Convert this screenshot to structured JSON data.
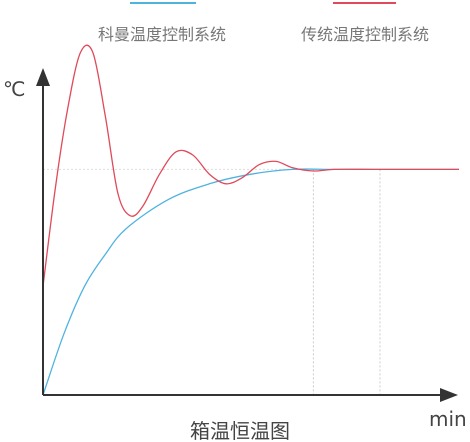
{
  "chart_data": {
    "type": "line",
    "title": "箱温恒温图",
    "xlabel": "min",
    "ylabel": "℃",
    "grid": false,
    "legend_placement": "top",
    "xlim": [
      0,
      10
    ],
    "ylim": [
      0,
      10
    ],
    "series": [
      {
        "name": "科曼温度控制系统",
        "color": "#4fb3e0",
        "x": [
          0,
          0.5,
          1,
          1.5,
          2,
          3,
          4,
          5,
          6,
          7,
          8,
          9,
          10
        ],
        "y": [
          0,
          1.9,
          3.4,
          4.4,
          5.2,
          6.1,
          6.6,
          6.9,
          7.05,
          7.05,
          7.05,
          7.05,
          7.05
        ]
      },
      {
        "name": "传统温度控制系统",
        "color": "#e04a5a",
        "x": [
          0,
          0.3,
          0.6,
          0.9,
          1.2,
          1.5,
          1.8,
          2.1,
          2.4,
          2.8,
          3.2,
          3.6,
          4.0,
          4.4,
          4.8,
          5.2,
          5.6,
          6.0,
          6.5,
          7.0,
          8.0,
          9.0,
          10.0
        ],
        "y": [
          3.4,
          6.5,
          9.0,
          10.7,
          10.7,
          8.7,
          6.3,
          5.6,
          5.9,
          6.9,
          7.6,
          7.5,
          6.9,
          6.6,
          6.8,
          7.2,
          7.3,
          7.1,
          7.0,
          7.05,
          7.05,
          7.05,
          7.05
        ]
      }
    ],
    "reference_lines": {
      "horizontal_y": 7.05,
      "vertical_x": [
        6.5,
        8.1
      ]
    }
  }
}
